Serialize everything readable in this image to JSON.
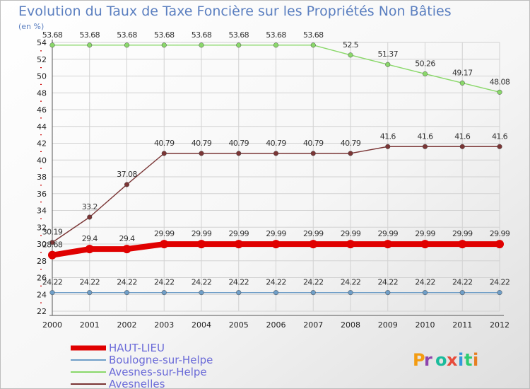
{
  "chart_data": {
    "type": "line",
    "title": "Evolution du Taux de Taxe Foncière sur les Propriétés Non Bâties",
    "ylabel": "(en %)",
    "xlabel": "",
    "ylim": [
      22,
      54
    ],
    "yticks": [
      22,
      24,
      26,
      28,
      30,
      32,
      34,
      36,
      38,
      40,
      42,
      44,
      46,
      48,
      50,
      52,
      54
    ],
    "categories": [
      "2000",
      "2001",
      "2002",
      "2003",
      "2004",
      "2005",
      "2006",
      "2007",
      "2008",
      "2009",
      "2010",
      "2011",
      "2012"
    ],
    "series": [
      {
        "name": "HAUT-LIEU",
        "color": "#e00000",
        "values": [
          28.68,
          29.4,
          29.4,
          29.99,
          29.99,
          29.99,
          29.99,
          29.99,
          29.99,
          29.99,
          29.99,
          29.99,
          29.99
        ],
        "labels": [
          "28.68",
          "29.4",
          "29.4",
          "29.99",
          "29.99",
          "29.99",
          "29.99",
          "29.99",
          "29.99",
          "29.99",
          "29.99",
          "29.99",
          "29.99"
        ]
      },
      {
        "name": "Boulogne-sur-Helpe",
        "color": "#6f9ec7",
        "values": [
          24.22,
          24.22,
          24.22,
          24.22,
          24.22,
          24.22,
          24.22,
          24.22,
          24.22,
          24.22,
          24.22,
          24.22,
          24.22
        ],
        "labels": [
          "24.22",
          "24.22",
          "24.22",
          "24.22",
          "24.22",
          "24.22",
          "24.22",
          "24.22",
          "24.22",
          "24.22",
          "24.22",
          "24.22",
          "24.22"
        ]
      },
      {
        "name": "Avesnes-sur-Helpe",
        "color": "#8ad86a",
        "values": [
          53.68,
          53.68,
          53.68,
          53.68,
          53.68,
          53.68,
          53.68,
          53.68,
          52.5,
          51.37,
          50.26,
          49.17,
          48.08
        ],
        "labels": [
          "53.68",
          "53.68",
          "53.68",
          "53.68",
          "53.68",
          "53.68",
          "53.68",
          "53.68",
          "52.5",
          "51.37",
          "50.26",
          "49.17",
          "48.08"
        ]
      },
      {
        "name": "Avesnelles",
        "color": "#7a3535",
        "values": [
          30.19,
          33.2,
          37.08,
          40.79,
          40.79,
          40.79,
          40.79,
          40.79,
          40.79,
          41.6,
          41.6,
          41.6,
          41.6
        ],
        "labels": [
          "30.19",
          "33.2",
          "37.08",
          "40.79",
          "40.79",
          "40.79",
          "40.79",
          "40.79",
          "40.79",
          "41.6",
          "41.6",
          "41.6",
          "41.6"
        ]
      }
    ],
    "legend_position": "bottom-left",
    "logo_text": "Proxiti"
  }
}
